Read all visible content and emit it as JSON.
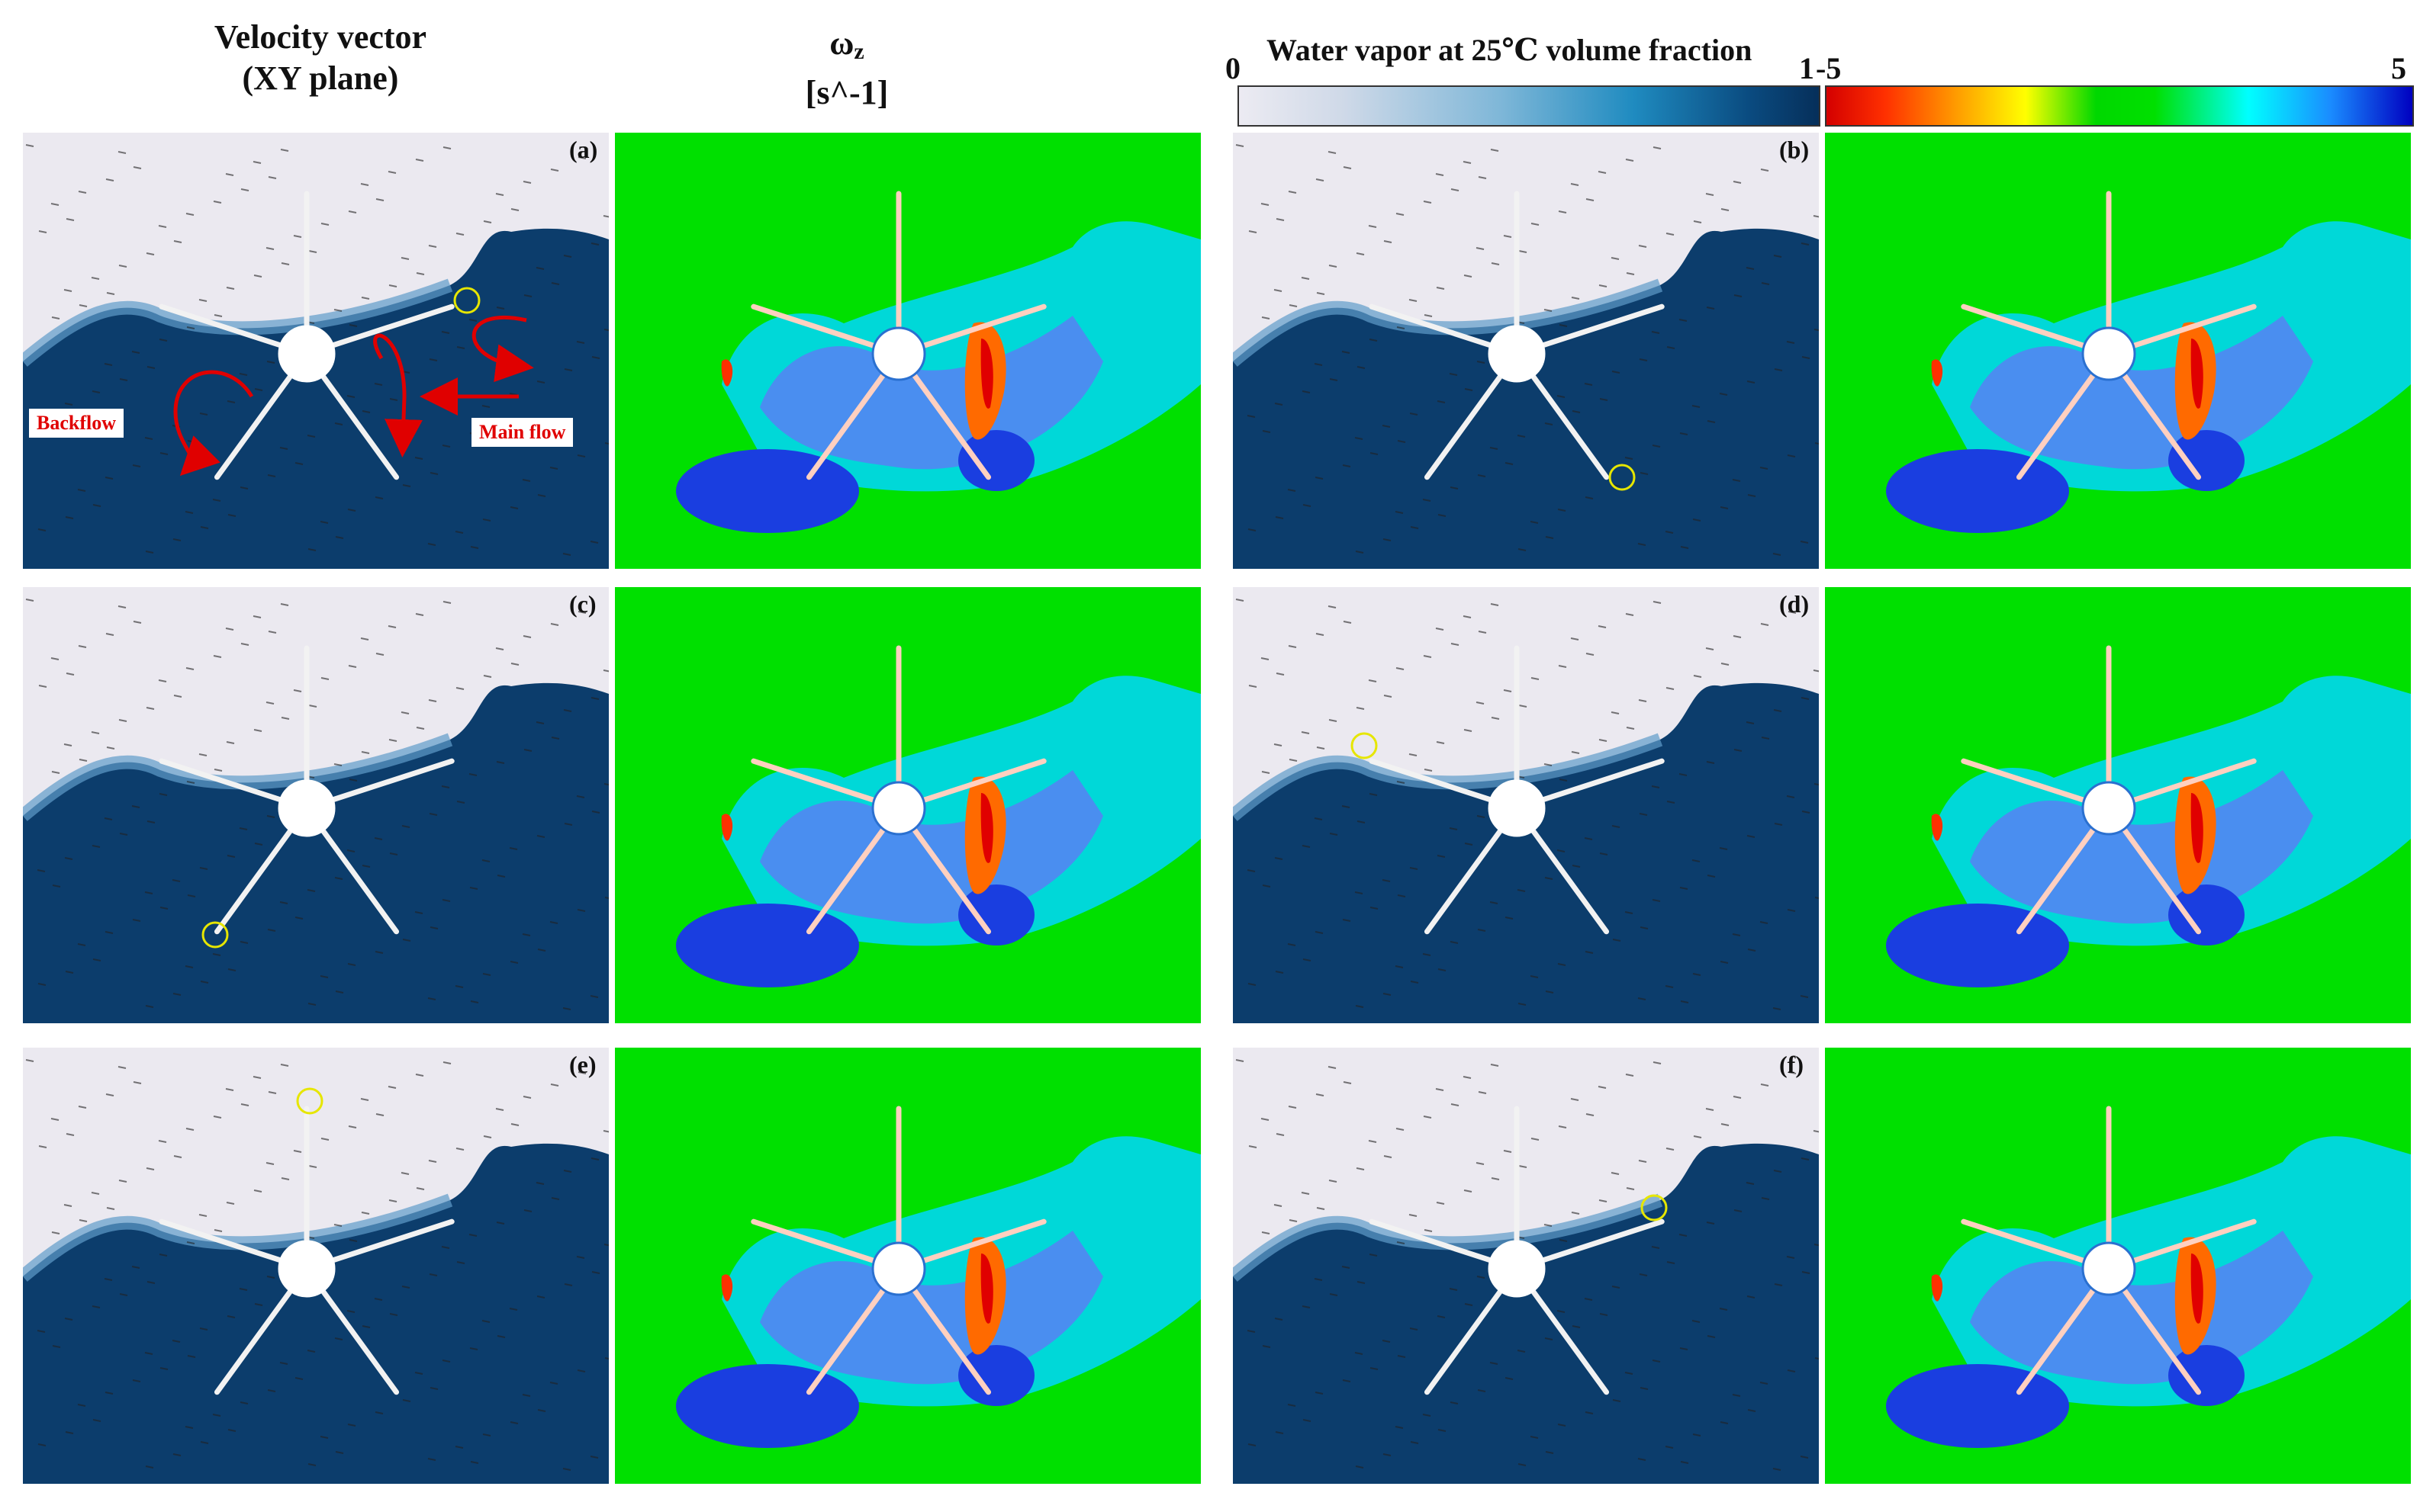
{
  "headers": {
    "velocity_line1": "Velocity vector",
    "velocity_line2": "(XY plane)",
    "omega_symbol": "ω",
    "omega_sub": "z",
    "omega_unit": "[s^-1]"
  },
  "colorbar_vapor": {
    "title": "Water vapor at 25℃ volume fraction",
    "min": "0",
    "max": "1",
    "colors": [
      "#ecebf2",
      "#7fb7d8",
      "#1f8bc0",
      "#062f5a"
    ]
  },
  "colorbar_vorticity": {
    "min": "-5",
    "max": "5",
    "colors": [
      "#d40000",
      "#ff9a00",
      "#ffff00",
      "#00e000",
      "#00ffff",
      "#1a8cff",
      "#0000c0"
    ]
  },
  "panel_labels": [
    "(a)",
    "(b)",
    "(c)",
    "(d)",
    "(e)",
    "(f)"
  ],
  "annotations": {
    "backflow": "Backflow",
    "main_flow": "Main flow"
  }
}
